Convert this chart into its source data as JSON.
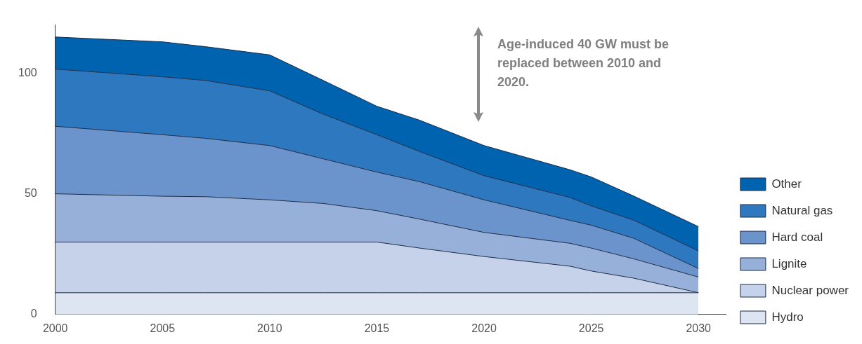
{
  "chart_data": {
    "type": "area",
    "stacked": true,
    "legend": "right",
    "x": [
      2000,
      2005,
      2007,
      2010,
      2012.5,
      2015,
      2017,
      2020,
      2024,
      2025,
      2027,
      2030
    ],
    "xlim": [
      2000,
      2031.3
    ],
    "xticks": [
      2000,
      2005,
      2010,
      2015,
      2020,
      2025,
      2030
    ],
    "ylim": [
      0,
      120
    ],
    "yticks": [
      0,
      50,
      100
    ],
    "annotations": [
      "Age-induced 40 GW must be replaced between 2010 and 2020."
    ],
    "series": [
      {
        "name": "Hydro",
        "color": "#dde4f2",
        "values": [
          9,
          9,
          9,
          9,
          9,
          9,
          9,
          9,
          9,
          9,
          9,
          9
        ]
      },
      {
        "name": "Nuclear power",
        "color": "#c5d2ea",
        "values": [
          21,
          21,
          21,
          21,
          21,
          21,
          18.5,
          15,
          11,
          9,
          6,
          0
        ]
      },
      {
        "name": "Lignite",
        "color": "#96b0da",
        "values": [
          20,
          19,
          18.8,
          17.5,
          16,
          13,
          12,
          10,
          9.5,
          9.5,
          8,
          6.5
        ]
      },
      {
        "name": "Hard coal",
        "color": "#6b93cc",
        "values": [
          28,
          25.5,
          24.2,
          22.5,
          18.5,
          16,
          15.5,
          13.5,
          9.5,
          9.5,
          8.5,
          3.5
        ]
      },
      {
        "name": "Natural gas",
        "color": "#2e78c0",
        "values": [
          23.7,
          24,
          24,
          22.7,
          18.5,
          15.5,
          12.5,
          10,
          9.5,
          8,
          7.5,
          7.3
        ]
      },
      {
        "name": "Other",
        "color": "#0063b0",
        "values": [
          13.3,
          14.5,
          14,
          14.9,
          14,
          11.8,
          13,
          12.5,
          11.5,
          12,
          10,
          10.1
        ]
      }
    ]
  }
}
